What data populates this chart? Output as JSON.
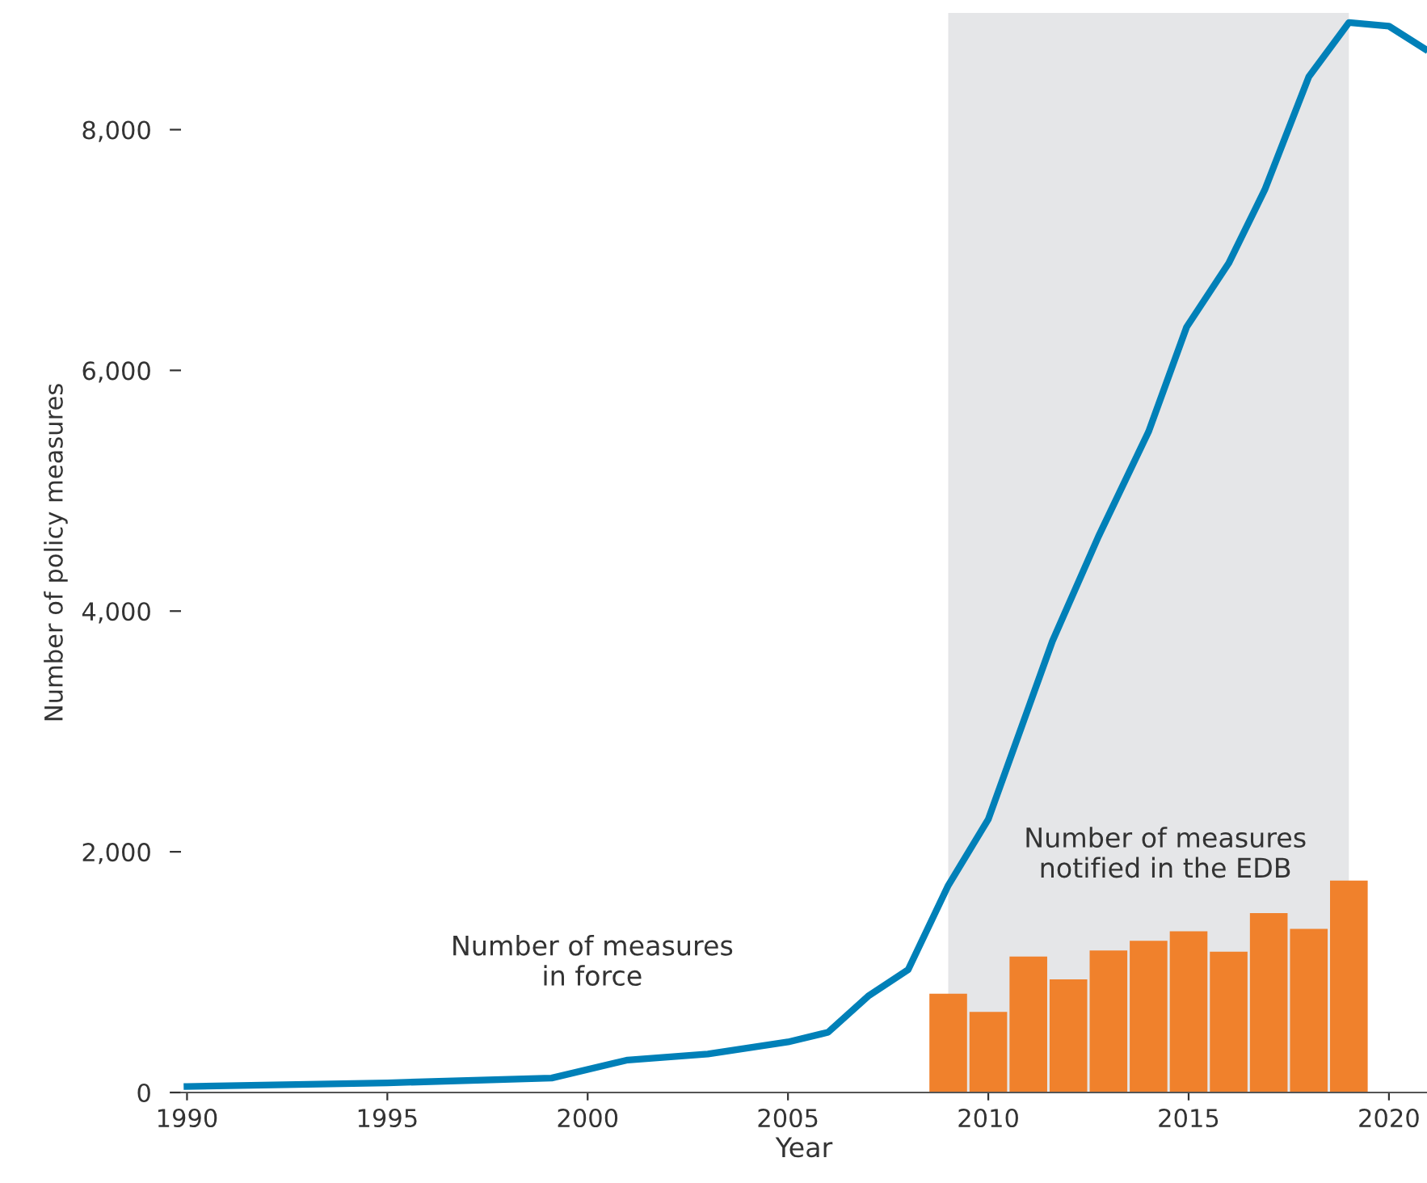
{
  "chart_data": {
    "type": "line",
    "xlabel": "Year",
    "ylabel": "Number of policy measures",
    "xlim": [
      1989.85,
      2020.95
    ],
    "ylim": [
      0,
      8970
    ],
    "xticks": [
      1990,
      1995,
      2000,
      2005,
      2010,
      2015,
      2020
    ],
    "yticks": [
      0,
      {
        "value": 2000,
        "label": "2,000"
      },
      {
        "value": 4000,
        "label": "4,000"
      },
      {
        "value": 6000,
        "label": "6,000"
      },
      {
        "value": 8000,
        "label": "8,000"
      }
    ],
    "grid": false,
    "legend": false,
    "bands": [
      {
        "axis": "x",
        "from": 2009,
        "to": 2019,
        "color": "#e5e6e8"
      }
    ],
    "series": [
      {
        "name": "Number of measures\nnotified in the EDB",
        "type": "bar",
        "color": "#f0812c",
        "x": [
          2009,
          2010,
          2011,
          2012,
          2013,
          2014,
          2015,
          2016,
          2017,
          2018,
          2019
        ],
        "values": [
          820,
          670,
          1130,
          940,
          1180,
          1260,
          1340,
          1170,
          1490,
          1360,
          1760
        ]
      },
      {
        "name": "Number of measures\nin force",
        "color": "#0080b8",
        "x": [
          1990,
          1995,
          1999.1,
          2001,
          2003,
          2005,
          2006,
          2007,
          2008,
          2009,
          2010,
          2011.6,
          2012.75,
          2014,
          2014.95,
          2016,
          2016.9,
          2018,
          2019,
          2020,
          2020.9
        ],
        "values": [
          50,
          80,
          120,
          270,
          320,
          420,
          500,
          800,
          1020,
          1720,
          2270,
          3750,
          4620,
          5490,
          6360,
          6890,
          7500,
          8440,
          8890,
          8860,
          8670
        ]
      }
    ]
  }
}
